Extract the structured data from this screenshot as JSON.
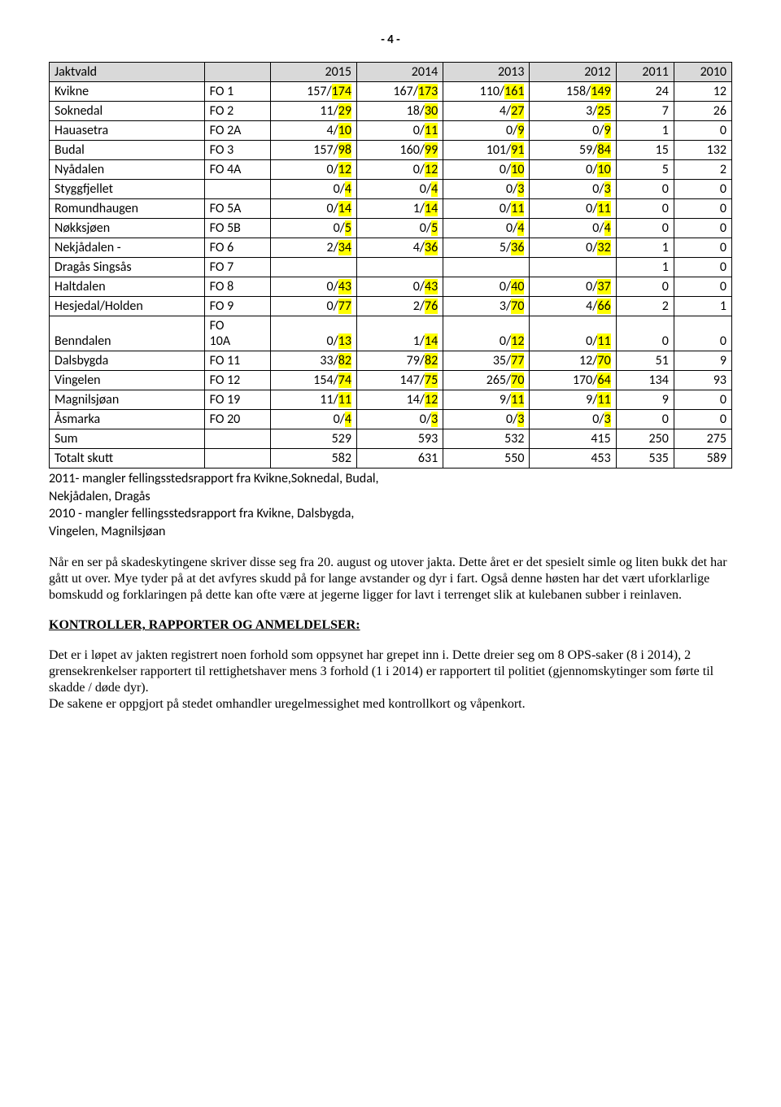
{
  "page_number": "- 4 -",
  "table": {
    "header": [
      "Jaktvald",
      "",
      "2015",
      "2014",
      "2013",
      "2012",
      "2011",
      "2010"
    ],
    "rows": [
      {
        "cells": [
          "Kvikne",
          "FO 1",
          {
            "pre": "157/",
            "hl": "174"
          },
          {
            "pre": "167/",
            "hl": "173"
          },
          {
            "pre": "110/",
            "hl": "161"
          },
          {
            "pre": "158/",
            "hl": "149"
          },
          "24",
          "12"
        ]
      },
      {
        "cells": [
          "Soknedal",
          "FO 2",
          {
            "pre": "11/",
            "hl": "29"
          },
          {
            "pre": "18/",
            "hl": "30"
          },
          {
            "pre": "4/",
            "hl": "27"
          },
          {
            "pre": "3/",
            "hl": "25"
          },
          "7",
          "26"
        ]
      },
      {
        "cells": [
          "Hauasetra",
          "FO 2A",
          {
            "pre": "4/",
            "hl": "10"
          },
          {
            "pre": "0/",
            "hl": "11"
          },
          {
            "pre": "0/",
            "hl": "9"
          },
          {
            "pre": "0/",
            "hl": "9"
          },
          "1",
          "0"
        ]
      },
      {
        "cells": [
          "Budal",
          "FO 3",
          {
            "pre": "157/",
            "hl": "98"
          },
          {
            "pre": "160/",
            "hl": "99"
          },
          {
            "pre": "101/",
            "hl": "91"
          },
          {
            "pre": "59/",
            "hl": "84"
          },
          "15",
          "132"
        ]
      },
      {
        "cells": [
          "Nyådalen",
          "FO 4A",
          {
            "pre": "0/",
            "hl": "12"
          },
          {
            "pre": "0/",
            "hl": "12"
          },
          {
            "pre": "0/",
            "hl": "10"
          },
          {
            "pre": "0/",
            "hl": "10"
          },
          "5",
          "2"
        ]
      },
      {
        "cells": [
          "Styggfjellet",
          "",
          {
            "pre": "0/",
            "hl": "4"
          },
          {
            "pre": "0/",
            "hl": "4"
          },
          {
            "pre": "0/",
            "hl": "3"
          },
          {
            "pre": "0/",
            "hl": "3"
          },
          "0",
          "0"
        ]
      },
      {
        "cells": [
          "Romundhaugen",
          "FO 5A",
          {
            "pre": "0/",
            "hl": "14"
          },
          {
            "pre": "1/",
            "hl": "14"
          },
          {
            "pre": "0/",
            "hl": "11"
          },
          {
            "pre": "0/",
            "hl": "11"
          },
          "0",
          "0"
        ]
      },
      {
        "cells": [
          "Nøkksjøen",
          "FO 5B",
          {
            "pre": "0/",
            "hl": "5"
          },
          {
            "pre": "0/",
            "hl": "5"
          },
          {
            "pre": "0/",
            "hl": "4"
          },
          {
            "pre": "0/",
            "hl": "4"
          },
          "0",
          "0"
        ]
      },
      {
        "cells": [
          "Nekjådalen -",
          "FO 6",
          {
            "pre": "2/",
            "hl": "34"
          },
          {
            "pre": "4/",
            "hl": "36"
          },
          {
            "pre": "5/",
            "hl": "36"
          },
          {
            "pre": "0/",
            "hl": "32"
          },
          "1",
          "0"
        ]
      },
      {
        "cells": [
          "Dragås  Singsås",
          "FO 7",
          "",
          "",
          "",
          "",
          "1",
          "0"
        ]
      },
      {
        "cells": [
          "Haltdalen",
          "FO 8",
          {
            "pre": "0/",
            "hl": "43"
          },
          {
            "pre": "0/",
            "hl": "43"
          },
          {
            "pre": "0/",
            "hl": "40"
          },
          {
            "pre": "0/",
            "hl": "37"
          },
          "0",
          "0"
        ]
      },
      {
        "cells": [
          "Hesjedal/Holden",
          "FO 9",
          {
            "pre": "0/",
            "hl": "77"
          },
          {
            "pre": "2/",
            "hl": "76"
          },
          {
            "pre": "3/",
            "hl": "70"
          },
          {
            "pre": "4/",
            "hl": "66"
          },
          "2",
          "1"
        ]
      },
      {
        "cells": [
          "Benndalen",
          "FO 10A",
          {
            "pre": "0/",
            "hl": "13"
          },
          {
            "pre": "1/",
            "hl": "14"
          },
          {
            "pre": "0/",
            "hl": "12"
          },
          {
            "pre": "0/",
            "hl": "11"
          },
          "0",
          "0"
        ],
        "twoLineCode": true
      },
      {
        "cells": [
          "Dalsbygda",
          "FO 11",
          {
            "pre": "33/",
            "hl": "82"
          },
          {
            "pre": "79/",
            "hl": "82"
          },
          {
            "pre": "35/",
            "hl": "77"
          },
          {
            "pre": "12/",
            "hl": "70"
          },
          "51",
          "9"
        ]
      },
      {
        "cells": [
          "Vingelen",
          "FO 12",
          {
            "pre": "154/",
            "hl": "74"
          },
          {
            "pre": "147/",
            "hl": "75"
          },
          {
            "pre": "265/",
            "hl": "70"
          },
          {
            "pre": "170/",
            "hl": "64"
          },
          "134",
          "93"
        ]
      },
      {
        "cells": [
          "Magnilsjøan",
          "FO 19",
          {
            "pre": "11/",
            "hl": "11"
          },
          {
            "pre": "14/",
            "hl": "12"
          },
          {
            "pre": "9/",
            "hl": "11"
          },
          {
            "pre": "9/",
            "hl": "11"
          },
          "9",
          "0"
        ]
      },
      {
        "cells": [
          "Åsmarka",
          "FO 20",
          {
            "pre": "0/",
            "hl": "4"
          },
          {
            "pre": "0/",
            "hl": "3"
          },
          {
            "pre": "0/",
            "hl": "3"
          },
          {
            "pre": "0/",
            "hl": "3"
          },
          "0",
          "0"
        ]
      },
      {
        "cells": [
          "Sum",
          "",
          "529",
          "593",
          "532",
          "415",
          "250",
          "275"
        ]
      },
      {
        "cells": [
          "Totalt skutt",
          "",
          "582",
          "631",
          "550",
          "453",
          "535",
          "589"
        ]
      }
    ],
    "header_bg": "#d9d9d9",
    "highlight_color": "#ffff00",
    "border_color": "#000000"
  },
  "notes": [
    " 2011- mangler fellingsstedsrapport fra Kvikne,Soknedal, Budal,",
    "Nekjådalen, Dragås",
    " 2010 - mangler fellingsstedsrapport fra Kvikne, Dalsbygda,",
    "Vingelen, Magnilsjøan"
  ],
  "paragraph1": "Når en ser på skadeskytingene skriver disse seg fra 20. august og utover jakta.  Dette året er det spesielt simle og liten bukk det har gått ut over.  Mye tyder på at det avfyres skudd på for lange avstander og dyr i fart.  Også denne høsten har det vært uforklarlige bomskudd og forklaringen på dette kan ofte være at jegerne ligger for lavt i terrenget slik at kulebanen subber i reinlaven.",
  "heading": "KONTROLLER,  RAPPORTER  OG  ANMELDELSER:",
  "paragraph2": "Det er i løpet av jakten registrert noen forhold som oppsynet har grepet inn i.  Dette dreier seg om 8 OPS-saker (8 i 2014), 2 grensekrenkelser rapportert til rettighetshaver mens 3 forhold (1 i 2014) er rapportert til politiet (gjennomskytinger som førte til skadde / døde dyr).",
  "paragraph3": "De sakene er oppgjort på stedet omhandler uregelmessighet med kontrollkort og våpenkort."
}
